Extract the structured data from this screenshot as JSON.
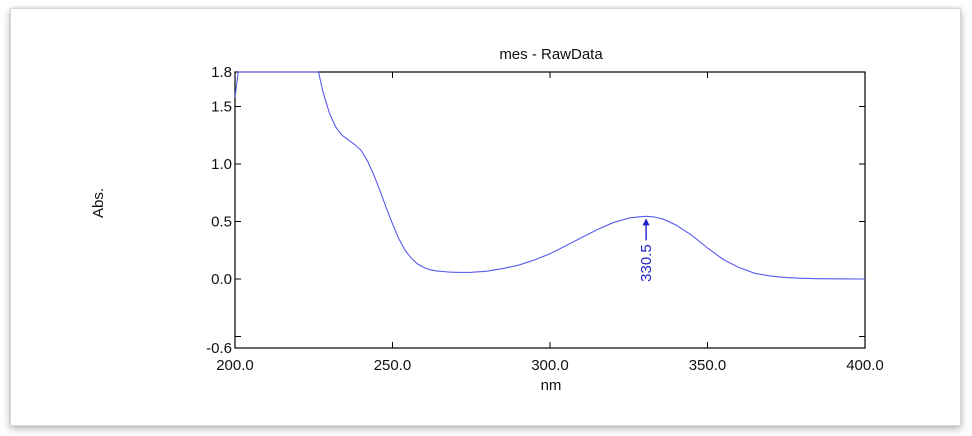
{
  "chart_data": {
    "type": "line",
    "title": "mes  - RawData",
    "xlabel": "nm",
    "ylabel": "Abs.",
    "xlim": [
      200.0,
      400.0
    ],
    "ylim": [
      -0.6,
      1.8
    ],
    "x_ticks": [
      "200.0",
      "250.0",
      "300.0",
      "350.0",
      "400.0"
    ],
    "y_ticks": [
      "-0.6",
      "0.0",
      "0.5",
      "1.0",
      "1.5",
      "1.8"
    ],
    "grid": false,
    "colors": {
      "line": "#5a5af0",
      "annotation": "#1f1fcc"
    },
    "series": [
      {
        "x": [
          200.0,
          201.0,
          202.0,
          226.5,
          228,
          230,
          232,
          234,
          236,
          238,
          240,
          242,
          244,
          246,
          248,
          250,
          252,
          254,
          256,
          258,
          260,
          262,
          264,
          266,
          268,
          270,
          272,
          275,
          280,
          285,
          290,
          295,
          300,
          305,
          310,
          315,
          320,
          325,
          328,
          330.5,
          333,
          336,
          340,
          345,
          350,
          355,
          360,
          365,
          370,
          375,
          380,
          385,
          390,
          395,
          400
        ],
        "y": [
          1.58,
          1.8,
          1.8,
          1.8,
          1.62,
          1.44,
          1.32,
          1.25,
          1.21,
          1.17,
          1.12,
          1.03,
          0.91,
          0.77,
          0.62,
          0.48,
          0.35,
          0.25,
          0.18,
          0.13,
          0.1,
          0.08,
          0.07,
          0.065,
          0.06,
          0.058,
          0.057,
          0.058,
          0.068,
          0.09,
          0.12,
          0.165,
          0.22,
          0.29,
          0.36,
          0.43,
          0.49,
          0.53,
          0.54,
          0.545,
          0.54,
          0.52,
          0.47,
          0.38,
          0.27,
          0.17,
          0.1,
          0.05,
          0.025,
          0.012,
          0.006,
          0.003,
          0.002,
          0.001,
          0.0
        ]
      }
    ],
    "annotations": [
      {
        "text": "330.5",
        "x": 330.5,
        "y": 0.545
      }
    ]
  }
}
